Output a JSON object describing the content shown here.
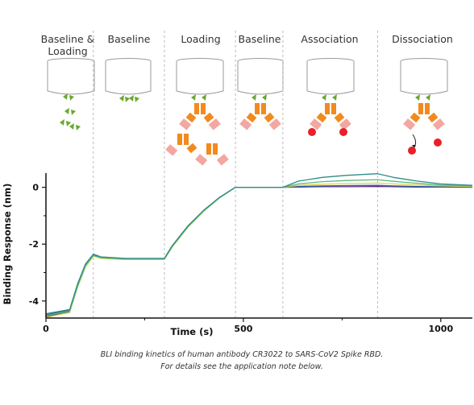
{
  "steps": [
    {
      "label_lines": [
        "Baseline &",
        "Loading"
      ]
    },
    {
      "label_lines": [
        "Baseline"
      ]
    },
    {
      "label_lines": [
        "Loading"
      ]
    },
    {
      "label_lines": [
        "Baseline"
      ]
    },
    {
      "label_lines": [
        "Association"
      ]
    },
    {
      "label_lines": [
        "Dissociation"
      ]
    }
  ],
  "caption": {
    "line1": "BLI binding kinetics of human antibody CR3022 to SARS-CoV2 Spike RBD.",
    "line2": "For details see the application note below."
  },
  "colors": {
    "main_curve": "#2e8b8b",
    "drop_line": "#bbbbbb",
    "antigen_green": "#6aa832",
    "antibody_orange": "#f28a1e",
    "antibody_pink": "#f4a6a0",
    "rbd_red": "#e8202a",
    "sensor_outline": "#999999"
  },
  "chart_data": {
    "type": "line",
    "title": "",
    "xlabel": "Time (s)",
    "ylabel": "Binding Response (nm)",
    "xlim": [
      0,
      1080
    ],
    "ylim": [
      -4.6,
      0.5
    ],
    "xticks": [
      0,
      500,
      1000
    ],
    "yticks": [
      0,
      -2,
      -4
    ],
    "step_boundaries": [
      120,
      300,
      480,
      600,
      840
    ],
    "series": [
      {
        "color": "#2e8b8b",
        "x": [
          0,
          20,
          40,
          60,
          80,
          100,
          120,
          140,
          200,
          300,
          320,
          360,
          400,
          440,
          480,
          600,
          640,
          700,
          760,
          840,
          880,
          940,
          1000,
          1080
        ],
        "y": [
          -4.45,
          -4.4,
          -4.35,
          -4.3,
          -3.4,
          -2.7,
          -2.35,
          -2.45,
          -2.5,
          -2.5,
          -2.05,
          -1.35,
          -0.8,
          -0.35,
          0.0,
          0.0,
          0.22,
          0.35,
          0.42,
          0.48,
          0.35,
          0.22,
          0.12,
          0.07
        ]
      },
      {
        "color": "#5cb87a",
        "x": [
          0,
          20,
          40,
          60,
          80,
          100,
          120,
          140,
          200,
          300,
          320,
          360,
          400,
          440,
          480,
          600,
          640,
          700,
          760,
          840,
          880,
          940,
          1000,
          1080
        ],
        "y": [
          -4.52,
          -4.46,
          -4.41,
          -4.36,
          -3.48,
          -2.76,
          -2.4,
          -2.48,
          -2.52,
          -2.52,
          -2.08,
          -1.38,
          -0.82,
          -0.36,
          0.0,
          0.0,
          0.12,
          0.2,
          0.24,
          0.27,
          0.21,
          0.14,
          0.08,
          0.05
        ]
      },
      {
        "color": "#d8d84a",
        "x": [
          0,
          20,
          40,
          60,
          80,
          100,
          120,
          140,
          200,
          300,
          320,
          360,
          400,
          440,
          480,
          600,
          640,
          700,
          760,
          840,
          880,
          940,
          1000,
          1080
        ],
        "y": [
          -4.58,
          -4.52,
          -4.46,
          -4.41,
          -3.52,
          -2.8,
          -2.42,
          -2.5,
          -2.54,
          -2.54,
          -2.1,
          -1.4,
          -0.84,
          -0.37,
          0.0,
          0.0,
          0.07,
          0.11,
          0.13,
          0.15,
          0.12,
          0.08,
          0.05,
          0.03
        ]
      },
      {
        "color": "#3a5fa8",
        "x": [
          0,
          20,
          40,
          60,
          80,
          100,
          120,
          140,
          200,
          300,
          320,
          360,
          400,
          440,
          480,
          600,
          640,
          700,
          760,
          840,
          880,
          940,
          1000,
          1080
        ],
        "y": [
          -4.49,
          -4.43,
          -4.38,
          -4.33,
          -3.44,
          -2.73,
          -2.37,
          -2.46,
          -2.51,
          -2.51,
          -2.06,
          -1.36,
          -0.81,
          -0.35,
          0.0,
          0.0,
          0.03,
          0.05,
          0.06,
          0.07,
          0.05,
          0.03,
          0.02,
          0.01
        ]
      },
      {
        "color": "#5b2c83",
        "x": [
          0,
          20,
          40,
          60,
          80,
          100,
          120,
          140,
          200,
          300,
          320,
          360,
          400,
          440,
          480,
          600,
          640,
          700,
          760,
          840,
          880,
          940,
          1000,
          1080
        ],
        "y": [
          -4.55,
          -4.49,
          -4.44,
          -4.38,
          -3.5,
          -2.78,
          -2.41,
          -2.49,
          -2.53,
          -2.53,
          -2.09,
          -1.39,
          -0.83,
          -0.36,
          0.0,
          0.0,
          0.01,
          0.02,
          0.02,
          0.03,
          0.02,
          0.01,
          0.01,
          0.0
        ]
      }
    ]
  }
}
